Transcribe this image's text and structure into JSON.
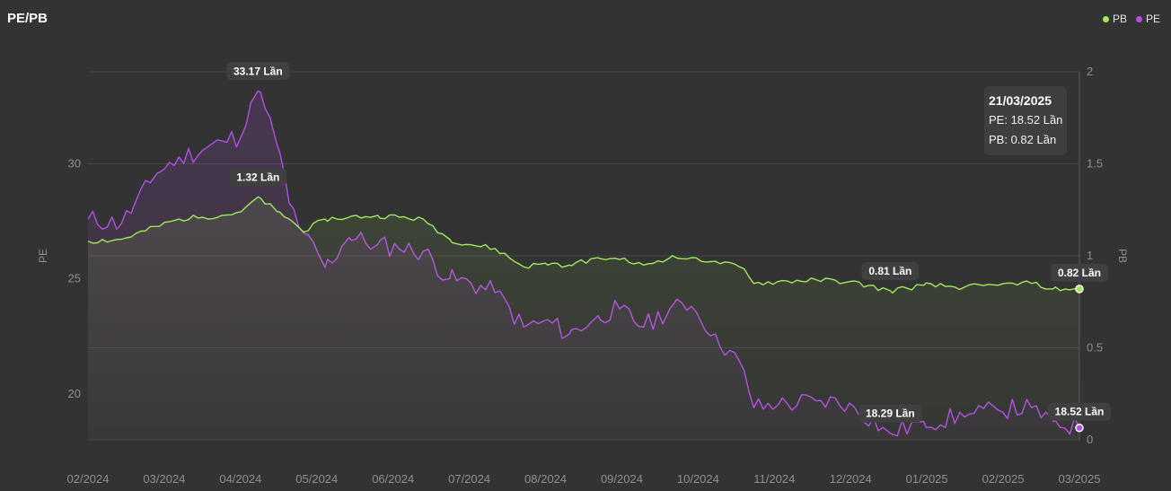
{
  "title": "PE/PB",
  "legend": [
    {
      "name": "PB",
      "color": "#a3e85b"
    },
    {
      "name": "PE",
      "color": "#b34fe8"
    }
  ],
  "tooltip": {
    "date": "21/03/2025",
    "pe": "PE: 18.52 Lần",
    "pb": "PB: 0.82 Lần"
  },
  "chart_data": {
    "type": "line",
    "title": "PE/PB",
    "x_labels": [
      "02/2024",
      "03/2024",
      "04/2024",
      "05/2024",
      "06/2024",
      "07/2024",
      "08/2024",
      "09/2024",
      "10/2024",
      "11/2024",
      "12/2024",
      "01/2025",
      "02/2025",
      "03/2025"
    ],
    "x_range": [
      "2024-02-01",
      "2025-03-21"
    ],
    "y_left": {
      "label": "PE",
      "ticks": [
        20,
        25,
        30
      ],
      "range": [
        18.0,
        34.0
      ]
    },
    "y_right": {
      "label": "PB",
      "ticks": [
        0,
        0.5,
        1,
        1.5,
        2
      ],
      "range": [
        0,
        2
      ]
    },
    "grid": true,
    "legend_position": "top-right",
    "series": [
      {
        "name": "PE",
        "axis": "left",
        "color": "#b34fe8",
        "x": [
          "2024-02-01",
          "2024-02-15",
          "2024-03-01",
          "2024-03-10",
          "2024-03-20",
          "2024-03-28",
          "2024-04-05",
          "2024-04-12",
          "2024-04-20",
          "2024-04-25",
          "2024-05-01",
          "2024-05-10",
          "2024-05-20",
          "2024-06-01",
          "2024-06-10",
          "2024-06-20",
          "2024-07-01",
          "2024-07-10",
          "2024-07-20",
          "2024-08-01",
          "2024-08-10",
          "2024-08-20",
          "2024-09-01",
          "2024-09-10",
          "2024-09-20",
          "2024-10-01",
          "2024-10-10",
          "2024-10-20",
          "2024-11-01",
          "2024-11-05",
          "2024-11-15",
          "2024-12-01",
          "2024-12-15",
          "2025-01-01",
          "2025-01-15",
          "2025-02-01",
          "2025-02-15",
          "2025-03-01",
          "2025-03-10",
          "2025-03-21"
        ],
        "values": [
          27.6,
          27.4,
          29.6,
          30.3,
          30.6,
          31.0,
          31.2,
          33.17,
          30.8,
          28.3,
          27.0,
          25.5,
          26.8,
          26.5,
          26.3,
          26.2,
          25.0,
          24.8,
          24.4,
          22.9,
          23.2,
          22.6,
          23.4,
          23.7,
          22.9,
          23.7,
          23.8,
          22.6,
          21.0,
          19.4,
          19.5,
          19.7,
          19.6,
          18.29,
          18.8,
          19.0,
          19.3,
          19.4,
          18.8,
          18.52
        ],
        "labels": [
          {
            "at": "max",
            "text": "33.17 Lần"
          },
          {
            "at": "2025-01-01",
            "text": "18.29 Lần"
          },
          {
            "at": "last",
            "text": "18.52 Lần"
          }
        ]
      },
      {
        "name": "PB",
        "axis": "right",
        "color": "#a3e85b",
        "x": [
          "2024-02-01",
          "2024-02-15",
          "2024-03-01",
          "2024-03-10",
          "2024-03-20",
          "2024-03-28",
          "2024-04-05",
          "2024-04-12",
          "2024-04-20",
          "2024-04-25",
          "2024-05-01",
          "2024-05-10",
          "2024-05-20",
          "2024-06-01",
          "2024-06-10",
          "2024-06-20",
          "2024-07-01",
          "2024-07-10",
          "2024-07-20",
          "2024-08-01",
          "2024-08-10",
          "2024-08-20",
          "2024-09-01",
          "2024-09-10",
          "2024-09-20",
          "2024-10-01",
          "2024-10-10",
          "2024-10-20",
          "2024-11-01",
          "2024-11-05",
          "2024-11-15",
          "2024-12-01",
          "2024-12-15",
          "2025-01-01",
          "2025-01-15",
          "2025-02-01",
          "2025-02-15",
          "2025-03-01",
          "2025-03-10",
          "2025-03-21"
        ],
        "values": [
          1.08,
          1.09,
          1.16,
          1.2,
          1.21,
          1.22,
          1.24,
          1.32,
          1.24,
          1.2,
          1.13,
          1.2,
          1.21,
          1.22,
          1.21,
          1.2,
          1.09,
          1.06,
          1.04,
          0.94,
          0.96,
          0.95,
          0.99,
          0.98,
          0.95,
          0.99,
          0.99,
          0.97,
          0.93,
          0.85,
          0.86,
          0.87,
          0.86,
          0.81,
          0.84,
          0.83,
          0.84,
          0.85,
          0.82,
          0.82
        ],
        "labels": [
          {
            "at": "max",
            "text": "1.32 Lần"
          },
          {
            "at": "2025-01-01",
            "text": "0.81 Lần"
          },
          {
            "at": "last",
            "text": "0.82 Lần"
          }
        ]
      }
    ]
  }
}
